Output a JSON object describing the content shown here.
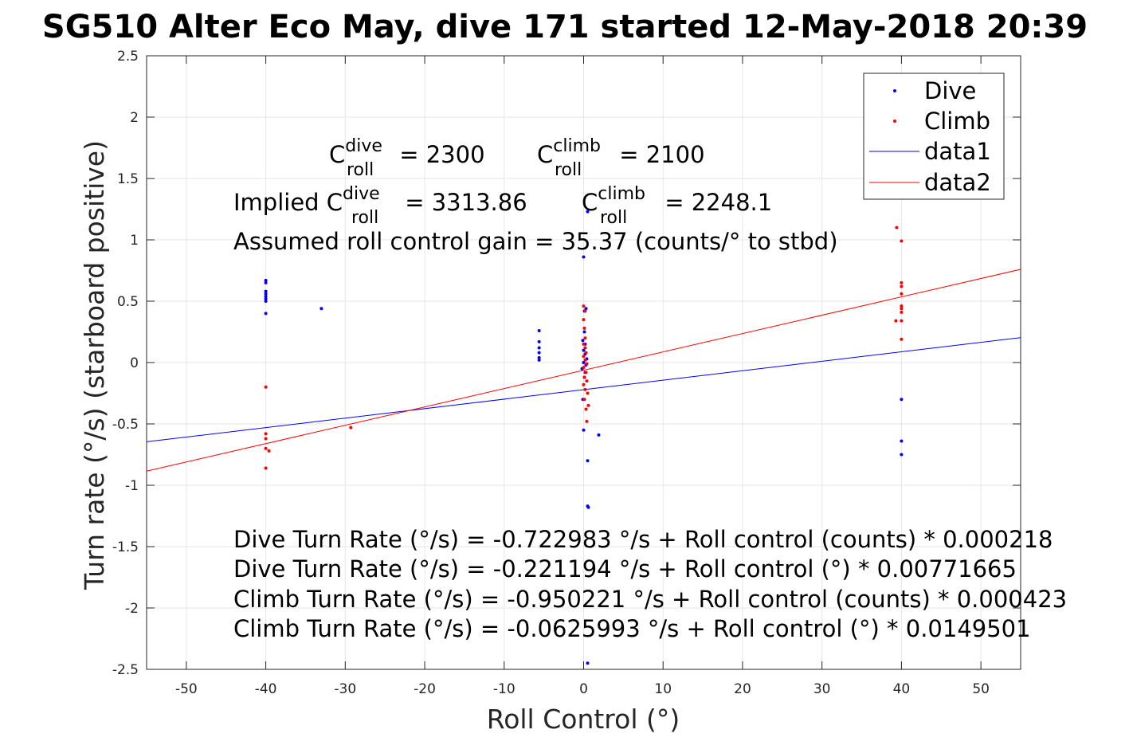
{
  "chart_data": {
    "type": "scatter",
    "title": "SG510 Alter Eco May, dive 171 started 12-May-2018 20:39",
    "xlabel": "Roll Control (°)",
    "ylabel": "Turn rate (°/s) (starboard positive)",
    "xlim": [
      -55,
      55
    ],
    "ylim": [
      -2.5,
      2.5
    ],
    "xticks": [
      -50,
      -40,
      -30,
      -20,
      -10,
      0,
      10,
      20,
      30,
      40,
      50
    ],
    "yticks": [
      2.5,
      2,
      1.5,
      1,
      0.5,
      0,
      -0.5,
      -1,
      -1.5,
      -2,
      -2.5
    ],
    "grid": true,
    "legend_position": "top-right",
    "series": [
      {
        "name": "Dive",
        "kind": "points",
        "color": "#0000ff",
        "points": [
          [
            -40,
            0.67
          ],
          [
            -40,
            0.65
          ],
          [
            -40,
            0.58
          ],
          [
            -40,
            0.56
          ],
          [
            -40,
            0.54
          ],
          [
            -40,
            0.52
          ],
          [
            -40,
            0.5
          ],
          [
            -40,
            0.4
          ],
          [
            -33,
            0.44
          ],
          [
            -5.6,
            0.26
          ],
          [
            -5.6,
            0.17
          ],
          [
            -5.6,
            0.12
          ],
          [
            -5.6,
            0.08
          ],
          [
            -5.6,
            0.04
          ],
          [
            -5.6,
            0.02
          ],
          [
            0,
            0.86
          ],
          [
            0.3,
            0.44
          ],
          [
            0.1,
            0.42
          ],
          [
            0.1,
            0.25
          ],
          [
            -0.1,
            0.18
          ],
          [
            0.2,
            0.15
          ],
          [
            0,
            0.1
          ],
          [
            0.2,
            0.07
          ],
          [
            0.4,
            0.03
          ],
          [
            0,
            0.0
          ],
          [
            0.3,
            -0.02
          ],
          [
            -0.2,
            -0.05
          ],
          [
            0.2,
            -0.08
          ],
          [
            0.1,
            -0.12
          ],
          [
            -0.1,
            -0.3
          ],
          [
            0,
            -0.55
          ],
          [
            1.9,
            -0.59
          ],
          [
            0.5,
            1.23
          ],
          [
            0.5,
            -0.8
          ],
          [
            0.5,
            -1.17
          ],
          [
            0.6,
            -1.18
          ],
          [
            0.5,
            -2.45
          ],
          [
            40,
            -0.3
          ],
          [
            40,
            -0.64
          ],
          [
            40,
            -0.75
          ]
        ]
      },
      {
        "name": "Climb",
        "kind": "points",
        "color": "#ff0000",
        "points": [
          [
            -40,
            -0.2
          ],
          [
            -40,
            -0.58
          ],
          [
            -40,
            -0.62
          ],
          [
            -40,
            -0.7
          ],
          [
            -39.6,
            -0.72
          ],
          [
            -40,
            -0.86
          ],
          [
            -29.3,
            -0.53
          ],
          [
            0,
            0.46
          ],
          [
            0.2,
            0.42
          ],
          [
            0,
            0.35
          ],
          [
            0.1,
            0.28
          ],
          [
            0.2,
            0.2
          ],
          [
            0,
            0.15
          ],
          [
            0.2,
            0.12
          ],
          [
            0.3,
            0.08
          ],
          [
            0,
            0.05
          ],
          [
            0.2,
            0.02
          ],
          [
            0.4,
            -0.01
          ],
          [
            0,
            -0.04
          ],
          [
            0.3,
            -0.08
          ],
          [
            0.1,
            -0.12
          ],
          [
            0.4,
            -0.15
          ],
          [
            0,
            -0.18
          ],
          [
            0.2,
            -0.22
          ],
          [
            0.5,
            -0.25
          ],
          [
            0.1,
            -0.3
          ],
          [
            0.6,
            -0.35
          ],
          [
            0.3,
            -0.38
          ],
          [
            0.4,
            -0.48
          ],
          [
            39.4,
            1.1
          ],
          [
            40,
            0.99
          ],
          [
            40,
            0.65
          ],
          [
            40,
            0.62
          ],
          [
            40,
            0.56
          ],
          [
            40,
            0.46
          ],
          [
            40,
            0.44
          ],
          [
            40,
            0.41
          ],
          [
            39.3,
            0.34
          ],
          [
            40,
            0.34
          ],
          [
            40,
            0.19
          ]
        ]
      },
      {
        "name": "data1",
        "kind": "line",
        "color": "#0000ff",
        "intercept": -0.221194,
        "slope": 0.00771665
      },
      {
        "name": "data2",
        "kind": "line",
        "color": "#ff0000",
        "intercept": -0.0625993,
        "slope": 0.0149501
      }
    ],
    "legend": [
      "Dive",
      "Climb",
      "data1",
      "data2"
    ]
  },
  "annotations": {
    "c_roll_dive": {
      "prefix": "",
      "base": "C",
      "sup": "dive",
      "sub": "roll",
      "value": " = 2300"
    },
    "c_roll_climb": {
      "prefix": "",
      "base": "C",
      "sup": "climb",
      "sub": "roll",
      "value": " = 2100"
    },
    "implied_dive": {
      "prefix": "Implied ",
      "base": "C",
      "sup": "dive",
      "sub": "roll",
      "value": " = 3313.86"
    },
    "implied_climb": {
      "prefix": "",
      "base": "C",
      "sup": "climb",
      "sub": "roll",
      "value": " = 2248.1"
    },
    "gain": "Assumed roll control gain = 35.37 (counts/° to stbd)",
    "eq1": "Dive Turn Rate (°/s) = -0.722983 °/s + Roll control (counts) * 0.000218",
    "eq2": "Dive Turn Rate (°/s) = -0.221194 °/s + Roll control (°) * 0.00771665",
    "eq3": "Climb Turn Rate (°/s) = -0.950221 °/s + Roll control (counts) * 0.000423",
    "eq4": "Climb Turn Rate (°/s) = -0.0625993 °/s + Roll control (°) * 0.0149501"
  }
}
